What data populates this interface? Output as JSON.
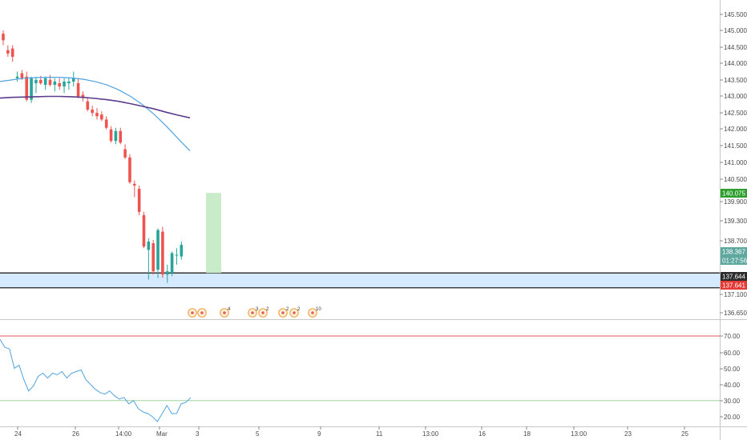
{
  "colors": {
    "up": "#26a69a",
    "down": "#ef5350",
    "ma_fast": "#4fa3e0",
    "ma_slow": "#5b3b8c",
    "rsi": "#4fa3e0",
    "zone_fill": "#d6eaff",
    "target_box": "#c8ecc8",
    "rsi_upper": "#e05a5a",
    "rsi_lower": "#9fd49f",
    "last_price_bg": "#5fa8a0",
    "target_price_bg": "#2e9e2e",
    "black_tag_bg": "#2b2b2b",
    "red_tag_bg": "#e53935"
  },
  "price_axis": {
    "ticks": [
      "145.500",
      "145.000",
      "144.500",
      "144.000",
      "143.500",
      "143.000",
      "142.500",
      "142.000",
      "141.500",
      "141.000",
      "140.500",
      "139.900",
      "139.300",
      "138.700",
      "137.100",
      "136.650"
    ]
  },
  "price_tags": {
    "target": "140.075",
    "last_price": "138.367",
    "countdown": "01:27:56",
    "zone_top": "137.644",
    "zone_bottom": "137.641"
  },
  "rsi_axis": {
    "ticks": [
      "70.00",
      "60.00",
      "50.00",
      "40.00",
      "30.00",
      "20.00"
    ]
  },
  "time_axis": {
    "ticks": [
      "24",
      "26",
      "14:00",
      "Mar",
      "3",
      "5",
      "9",
      "11",
      "13:00",
      "16",
      "18",
      "13:00",
      "23",
      "25"
    ]
  },
  "event_markers": [
    {
      "count": ""
    },
    {
      "count": ""
    },
    {
      "count": "4"
    },
    {
      "count": "3"
    },
    {
      "count": "2"
    },
    {
      "count": "2"
    },
    {
      "count": "2"
    },
    {
      "count": "10"
    }
  ],
  "chart_data": {
    "type": "candlestick",
    "price_range": [
      136.5,
      145.9
    ],
    "candles": [
      {
        "o": 144.9,
        "h": 145.0,
        "l": 144.55,
        "c": 144.7
      },
      {
        "o": 144.4,
        "h": 144.55,
        "l": 144.2,
        "c": 144.3
      },
      {
        "o": 144.45,
        "h": 144.55,
        "l": 144.05,
        "c": 144.2
      },
      {
        "o": 143.55,
        "h": 143.75,
        "l": 143.45,
        "c": 143.6
      },
      {
        "o": 143.7,
        "h": 143.8,
        "l": 143.5,
        "c": 143.55
      },
      {
        "o": 143.6,
        "h": 143.75,
        "l": 142.85,
        "c": 142.9
      },
      {
        "o": 142.9,
        "h": 143.6,
        "l": 142.8,
        "c": 143.55
      },
      {
        "o": 143.4,
        "h": 143.6,
        "l": 143.1,
        "c": 143.5
      },
      {
        "o": 143.5,
        "h": 143.62,
        "l": 143.35,
        "c": 143.4
      },
      {
        "o": 143.35,
        "h": 143.6,
        "l": 143.2,
        "c": 143.55
      },
      {
        "o": 143.5,
        "h": 143.65,
        "l": 143.3,
        "c": 143.35
      },
      {
        "o": 143.35,
        "h": 143.55,
        "l": 143.15,
        "c": 143.45
      },
      {
        "o": 143.4,
        "h": 143.55,
        "l": 143.2,
        "c": 143.3
      },
      {
        "o": 143.3,
        "h": 143.55,
        "l": 143.1,
        "c": 143.45
      },
      {
        "o": 143.4,
        "h": 143.55,
        "l": 143.2,
        "c": 143.45
      },
      {
        "o": 143.45,
        "h": 143.75,
        "l": 143.3,
        "c": 143.55
      },
      {
        "o": 143.4,
        "h": 143.55,
        "l": 142.95,
        "c": 143.0
      },
      {
        "o": 143.05,
        "h": 143.15,
        "l": 142.85,
        "c": 142.95
      },
      {
        "o": 142.85,
        "h": 142.95,
        "l": 142.55,
        "c": 142.6
      },
      {
        "o": 142.6,
        "h": 142.72,
        "l": 142.4,
        "c": 142.5
      },
      {
        "o": 142.5,
        "h": 142.65,
        "l": 142.3,
        "c": 142.4
      },
      {
        "o": 142.45,
        "h": 142.55,
        "l": 142.25,
        "c": 142.3
      },
      {
        "o": 142.3,
        "h": 142.4,
        "l": 142.0,
        "c": 142.05
      },
      {
        "o": 142.0,
        "h": 142.1,
        "l": 141.6,
        "c": 141.65
      },
      {
        "o": 141.65,
        "h": 142.05,
        "l": 141.55,
        "c": 141.95
      },
      {
        "o": 141.95,
        "h": 142.05,
        "l": 141.55,
        "c": 141.6
      },
      {
        "o": 141.4,
        "h": 141.55,
        "l": 141.1,
        "c": 141.15
      },
      {
        "o": 141.15,
        "h": 141.25,
        "l": 140.35,
        "c": 140.4
      },
      {
        "o": 140.35,
        "h": 140.45,
        "l": 139.95,
        "c": 140.3
      },
      {
        "o": 140.2,
        "h": 140.3,
        "l": 139.4,
        "c": 139.5
      },
      {
        "o": 139.4,
        "h": 139.5,
        "l": 138.4,
        "c": 138.45
      },
      {
        "o": 138.35,
        "h": 138.7,
        "l": 137.45,
        "c": 138.6
      },
      {
        "o": 138.55,
        "h": 138.65,
        "l": 137.6,
        "c": 137.7
      },
      {
        "o": 137.75,
        "h": 139.0,
        "l": 137.5,
        "c": 138.95
      },
      {
        "o": 138.9,
        "h": 139.05,
        "l": 137.5,
        "c": 137.6
      },
      {
        "o": 137.6,
        "h": 137.9,
        "l": 137.35,
        "c": 137.7
      },
      {
        "o": 137.65,
        "h": 138.3,
        "l": 137.55,
        "c": 138.25
      },
      {
        "o": 138.2,
        "h": 138.4,
        "l": 137.9,
        "c": 138.2
      },
      {
        "o": 138.15,
        "h": 138.6,
        "l": 138.05,
        "c": 138.5
      }
    ],
    "ma_fast": [
      143.45,
      143.5,
      143.55,
      143.57,
      143.58,
      143.58,
      143.56,
      143.52,
      143.45,
      143.35,
      143.2,
      143.0,
      142.75,
      142.45,
      142.1,
      141.72,
      141.35
    ],
    "ma_slow": [
      142.95,
      142.97,
      142.98,
      142.99,
      143.0,
      143.0,
      142.99,
      142.97,
      142.94,
      142.9,
      142.85,
      142.78,
      142.7,
      142.62,
      142.52,
      142.43,
      142.35
    ],
    "support_zone": [
      137.2,
      137.65
    ],
    "target_box": [
      137.65,
      140.075
    ],
    "rsi": {
      "range": [
        15,
        75
      ],
      "upper_level": 70,
      "lower_level": 30,
      "values": [
        68,
        63,
        62,
        50,
        52,
        43,
        36,
        39,
        45,
        47,
        44,
        47,
        46,
        48,
        44,
        47,
        48,
        49,
        43,
        40,
        37,
        35,
        34,
        36,
        33,
        31,
        32,
        28,
        30,
        25,
        23,
        22,
        20,
        17,
        22,
        27,
        22,
        22,
        28,
        29,
        32
      ]
    }
  }
}
